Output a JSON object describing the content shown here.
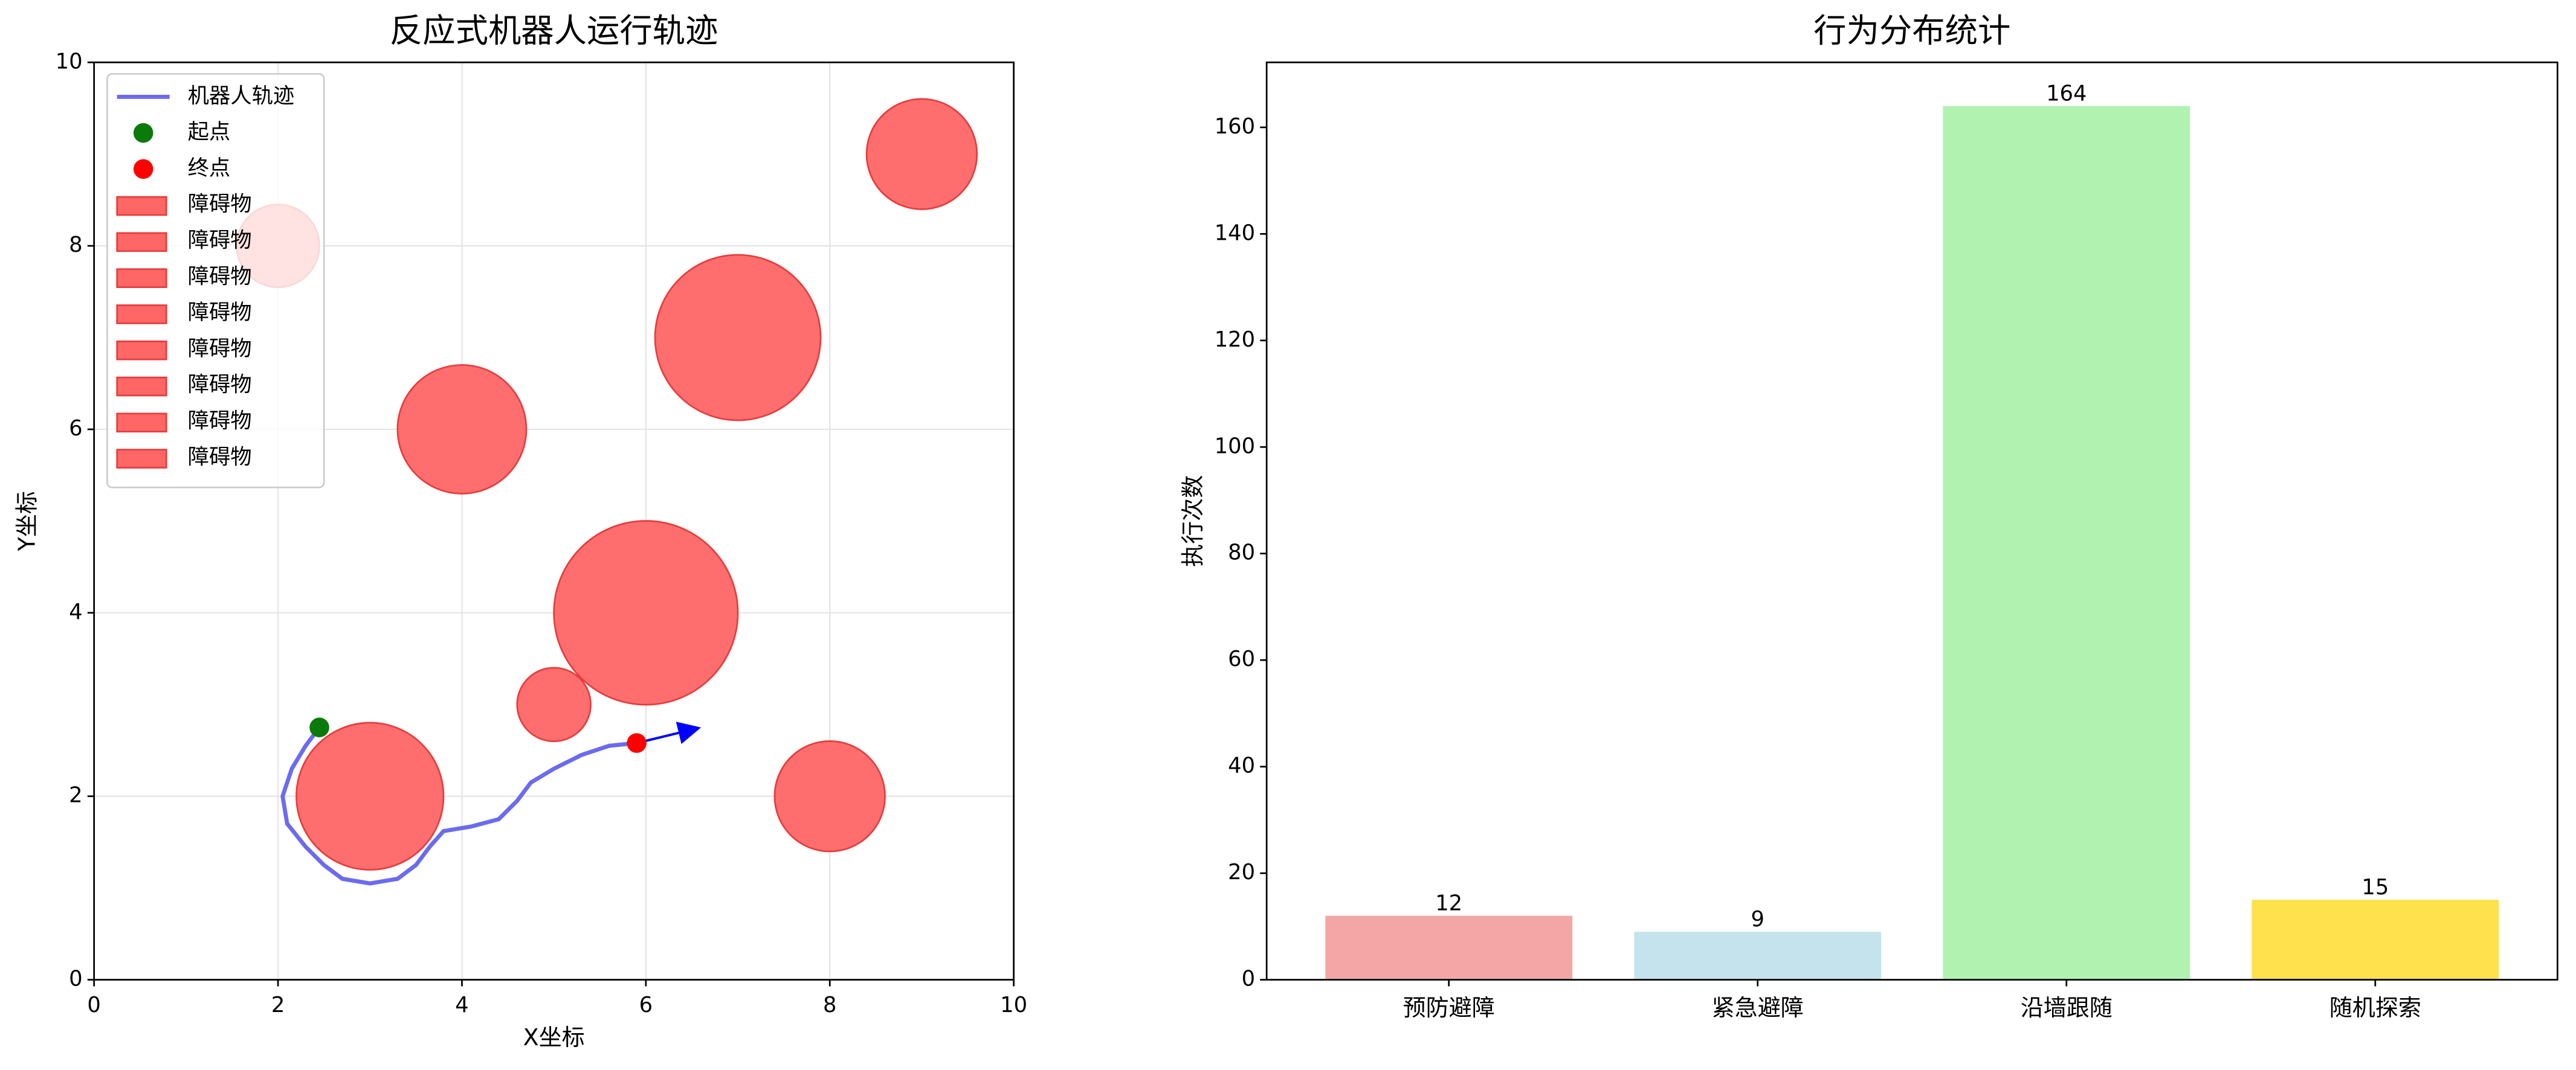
{
  "chart_data": [
    {
      "type": "trajectory",
      "title": "反应式机器人运行轨迹",
      "xlabel": "X坐标",
      "ylabel": "Y坐标",
      "xlim": [
        0,
        10
      ],
      "ylim": [
        0,
        10
      ],
      "xticks": [
        0,
        2,
        4,
        6,
        8,
        10
      ],
      "yticks": [
        0,
        2,
        4,
        6,
        8,
        10
      ],
      "grid": true,
      "legend": "upper left",
      "path": {
        "name": "机器人轨迹",
        "color": "#6b6bef",
        "x": [
          2.45,
          2.3,
          2.15,
          2.05,
          2.1,
          2.3,
          2.5,
          2.7,
          3.0,
          3.3,
          3.5,
          3.65,
          3.8,
          4.1,
          4.4,
          4.6,
          4.75,
          5.0,
          5.3,
          5.6,
          5.9
        ],
        "y": [
          2.75,
          2.55,
          2.3,
          2.0,
          1.7,
          1.45,
          1.25,
          1.1,
          1.05,
          1.1,
          1.25,
          1.45,
          1.62,
          1.67,
          1.75,
          1.95,
          2.15,
          2.3,
          2.45,
          2.55,
          2.58
        ]
      },
      "start": {
        "name": "起点",
        "color": "#0a7a0a",
        "x": 2.45,
        "y": 2.75
      },
      "end": {
        "name": "终点",
        "color": "#ff0000",
        "x": 5.9,
        "y": 2.58
      },
      "heading": {
        "color": "#0000ff",
        "x": 6.6,
        "y": 2.75
      },
      "obstacle_color": "#ff6666",
      "obstacles": [
        {
          "name": "障碍物",
          "x": 2,
          "y": 8,
          "r": 0.45
        },
        {
          "name": "障碍物",
          "x": 9,
          "y": 9,
          "r": 0.6
        },
        {
          "name": "障碍物",
          "x": 7,
          "y": 7,
          "r": 0.9
        },
        {
          "name": "障碍物",
          "x": 4,
          "y": 6,
          "r": 0.7
        },
        {
          "name": "障碍物",
          "x": 6,
          "y": 4,
          "r": 1.0
        },
        {
          "name": "障碍物",
          "x": 5,
          "y": 3,
          "r": 0.4
        },
        {
          "name": "障碍物",
          "x": 3,
          "y": 2,
          "r": 0.8
        },
        {
          "name": "障碍物",
          "x": 8,
          "y": 2,
          "r": 0.6
        }
      ]
    },
    {
      "type": "bar",
      "title": "行为分布统计",
      "ylabel": "执行次数",
      "categories": [
        "预防避障",
        "紧急避障",
        "沿墙跟随",
        "随机探索"
      ],
      "values": [
        12,
        9,
        164,
        15
      ],
      "colors": [
        "#f4a6a6",
        "#c5e3ec",
        "#b1f2b1",
        "#ffe14d"
      ],
      "ylim": [
        0,
        172.2
      ],
      "yticks": [
        0,
        20,
        40,
        60,
        80,
        100,
        120,
        140,
        160
      ],
      "grid": false
    }
  ]
}
